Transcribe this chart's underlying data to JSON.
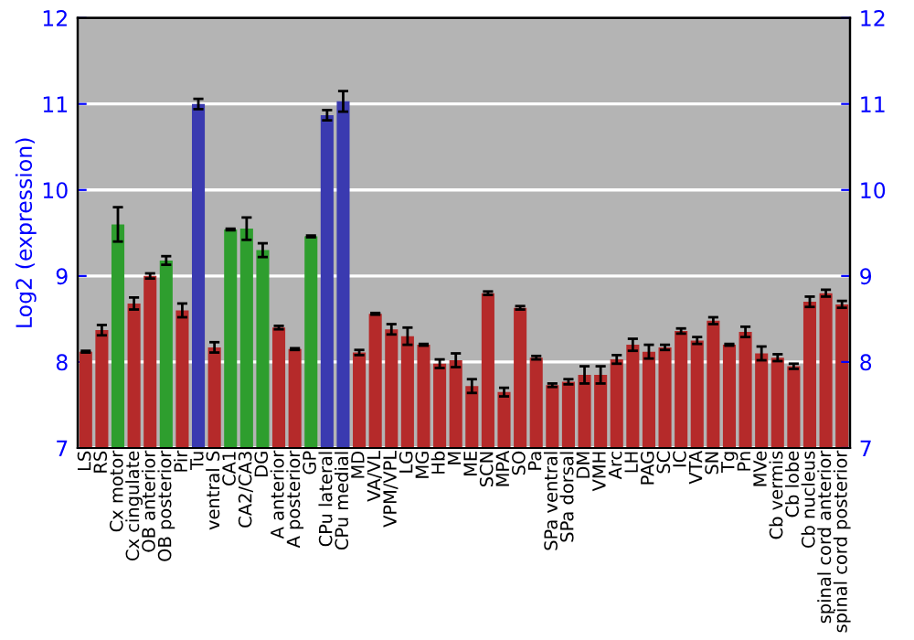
{
  "chart_data": {
    "type": "bar",
    "ylabel": "Log2 (expression)",
    "categories": [
      "LS",
      "RS",
      "Cx motor",
      "Cx cingulate",
      "OB anterior",
      "OB posterior",
      "Pir",
      "Tu",
      "ventral S",
      "CA1",
      "CA2/CA3",
      "DG",
      "A anterior",
      "A posterior",
      "GP",
      "CPu lateral",
      "CPu medial",
      "MD",
      "VA/VL",
      "VPM/VPL",
      "LG",
      "MG",
      "Hb",
      "M",
      "ME",
      "SCN",
      "MPA",
      "SO",
      "Pa",
      "SPa ventral",
      "SPa dorsal",
      "DM",
      "VMH",
      "Arc",
      "LH",
      "PAG",
      "SC",
      "IC",
      "VTA",
      "SN",
      "Tg",
      "Pn",
      "MVe",
      "Cb vermis",
      "Cb lobe",
      "Cb nucleus",
      "spinal cord anterior",
      "spinal cord posterior"
    ],
    "values": [
      8.12,
      8.37,
      9.6,
      8.68,
      9.0,
      9.18,
      8.6,
      11.0,
      8.17,
      9.54,
      9.55,
      9.3,
      8.4,
      8.15,
      9.46,
      10.87,
      11.03,
      8.11,
      8.56,
      8.38,
      8.3,
      8.2,
      7.98,
      8.02,
      7.72,
      8.8,
      7.65,
      8.63,
      8.05,
      7.73,
      7.77,
      7.85,
      7.85,
      8.03,
      8.2,
      8.12,
      8.17,
      8.36,
      8.25,
      8.48,
      8.2,
      8.35,
      8.1,
      8.05,
      7.95,
      8.7,
      8.8,
      8.67
    ],
    "errors": [
      0.01,
      0.06,
      0.2,
      0.07,
      0.03,
      0.05,
      0.08,
      0.06,
      0.06,
      0.01,
      0.13,
      0.08,
      0.02,
      0.01,
      0.01,
      0.06,
      0.12,
      0.03,
      0.01,
      0.06,
      0.1,
      0.01,
      0.05,
      0.08,
      0.08,
      0.02,
      0.05,
      0.02,
      0.02,
      0.02,
      0.03,
      0.1,
      0.1,
      0.05,
      0.07,
      0.08,
      0.03,
      0.03,
      0.04,
      0.04,
      0.01,
      0.06,
      0.08,
      0.04,
      0.03,
      0.06,
      0.04,
      0.04
    ],
    "colors": [
      "#b52a2a",
      "#b52a2a",
      "#2e9e2e",
      "#b52a2a",
      "#b52a2a",
      "#2e9e2e",
      "#b52a2a",
      "#3a3ab0",
      "#b52a2a",
      "#2e9e2e",
      "#2e9e2e",
      "#2e9e2e",
      "#b52a2a",
      "#b52a2a",
      "#2e9e2e",
      "#3a3ab0",
      "#3a3ab0",
      "#b52a2a",
      "#b52a2a",
      "#b52a2a",
      "#b52a2a",
      "#b52a2a",
      "#b52a2a",
      "#b52a2a",
      "#b52a2a",
      "#b52a2a",
      "#b52a2a",
      "#b52a2a",
      "#b52a2a",
      "#b52a2a",
      "#b52a2a",
      "#b52a2a",
      "#b52a2a",
      "#b52a2a",
      "#b52a2a",
      "#b52a2a",
      "#b52a2a",
      "#b52a2a",
      "#b52a2a",
      "#b52a2a",
      "#b52a2a",
      "#b52a2a",
      "#b52a2a",
      "#b52a2a",
      "#b52a2a",
      "#b52a2a",
      "#b52a2a",
      "#b52a2a"
    ],
    "ylim": [
      7,
      12
    ],
    "yticks": [
      7,
      8,
      9,
      10,
      11,
      12
    ],
    "y2lim": [
      7,
      12
    ],
    "y2ticks": [
      7,
      8,
      9,
      10,
      11,
      12
    ],
    "grid": "y"
  }
}
